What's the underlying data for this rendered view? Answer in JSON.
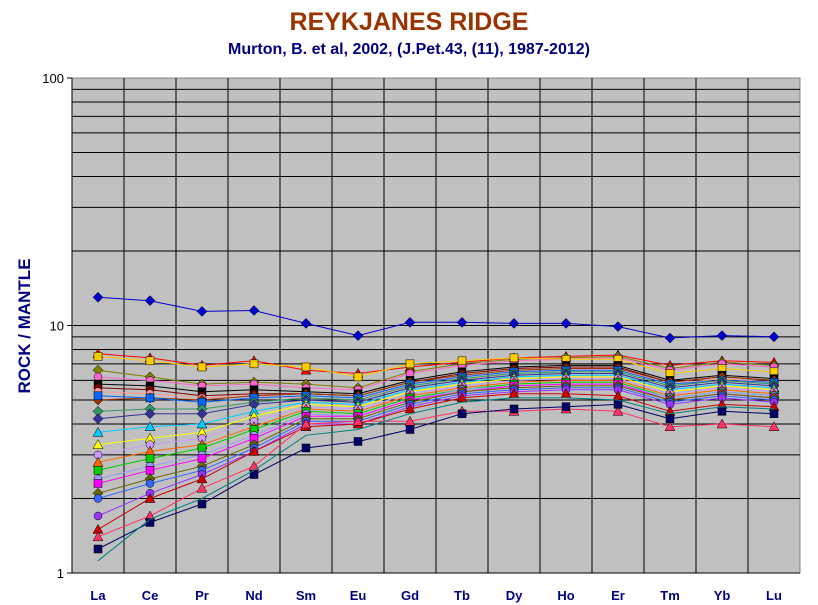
{
  "chart_data": {
    "type": "line",
    "title": "REYKJANES RIDGE",
    "subtitle": "Murton, B. et al, 2002, (J.Pet.43, (11), 1987-2012)",
    "ylabel": "ROCK / MANTLE",
    "xlabel": "",
    "yscale": "log",
    "ylim": [
      1,
      100
    ],
    "yticks": [
      "1",
      "10",
      "100"
    ],
    "grid": true,
    "legend": "none",
    "categories": [
      "La",
      "Ce",
      "Pr",
      "Nd",
      "Sm",
      "Eu",
      "Gd",
      "Tb",
      "Dy",
      "Ho",
      "Er",
      "Tm",
      "Yb",
      "Lu"
    ],
    "series": [
      {
        "color": "#0000cc",
        "marker": "diamond",
        "values": [
          13.0,
          12.6,
          11.4,
          11.5,
          10.2,
          9.1,
          10.3,
          10.3,
          10.2,
          10.2,
          9.9,
          8.9,
          9.1,
          9.0
        ]
      },
      {
        "color": "#ff0000",
        "marker": "triangle",
        "values": [
          7.7,
          7.4,
          6.9,
          7.2,
          6.6,
          6.4,
          6.8,
          7.1,
          7.4,
          7.5,
          7.6,
          6.9,
          7.2,
          7.1
        ]
      },
      {
        "color": "#808000",
        "marker": "diamond",
        "values": [
          6.6,
          6.2,
          5.8,
          5.9,
          5.8,
          5.6,
          6.5,
          7.0,
          7.3,
          7.4,
          7.5,
          6.7,
          7.1,
          6.9
        ]
      },
      {
        "color": "#ff66cc",
        "marker": "circle",
        "values": [
          6.2,
          6.0,
          5.7,
          5.8,
          5.6,
          5.5,
          6.4,
          6.9,
          7.2,
          7.3,
          7.4,
          6.6,
          7.0,
          6.8
        ]
      },
      {
        "color": "#ffcc00",
        "marker": "square",
        "values": [
          7.5,
          7.2,
          6.8,
          7.0,
          6.8,
          6.2,
          7.0,
          7.2,
          7.4,
          7.3,
          7.3,
          6.4,
          6.7,
          6.5
        ]
      },
      {
        "color": "#000000",
        "marker": "square",
        "values": [
          5.8,
          5.7,
          5.4,
          5.5,
          5.4,
          5.3,
          6.0,
          6.5,
          6.8,
          6.9,
          6.9,
          6.0,
          6.3,
          6.1
        ]
      },
      {
        "color": "#800000",
        "marker": "circle",
        "values": [
          5.6,
          5.5,
          5.2,
          5.3,
          5.3,
          5.2,
          5.9,
          6.4,
          6.7,
          6.8,
          6.8,
          5.9,
          6.2,
          6.0
        ]
      },
      {
        "color": "#ff9999",
        "marker": "circle",
        "values": [
          5.4,
          5.3,
          5.1,
          5.2,
          5.1,
          5.0,
          5.8,
          6.2,
          6.5,
          6.6,
          6.7,
          5.8,
          6.1,
          5.9
        ]
      },
      {
        "color": "#993300",
        "marker": "diamond",
        "values": [
          5.0,
          5.1,
          5.0,
          5.2,
          5.3,
          5.2,
          5.9,
          6.3,
          6.6,
          6.7,
          6.7,
          5.9,
          6.2,
          6.0
        ]
      },
      {
        "color": "#0066ff",
        "marker": "square",
        "values": [
          5.2,
          5.1,
          4.9,
          5.1,
          5.2,
          5.1,
          5.8,
          6.2,
          6.5,
          6.6,
          6.6,
          5.8,
          6.0,
          5.9
        ]
      },
      {
        "color": "#339966",
        "marker": "diamond",
        "values": [
          4.5,
          4.6,
          4.6,
          4.9,
          5.1,
          5.0,
          5.7,
          6.1,
          6.4,
          6.5,
          6.5,
          5.7,
          6.0,
          5.8
        ]
      },
      {
        "color": "#333399",
        "marker": "diamond",
        "values": [
          4.2,
          4.4,
          4.4,
          4.8,
          5.0,
          4.9,
          5.6,
          6.0,
          6.3,
          6.4,
          6.4,
          5.6,
          5.9,
          5.7
        ]
      },
      {
        "color": "#00ccff",
        "marker": "triangle",
        "values": [
          3.7,
          3.9,
          4.0,
          4.5,
          4.9,
          4.8,
          5.5,
          5.9,
          6.2,
          6.3,
          6.3,
          5.5,
          5.8,
          5.6
        ]
      },
      {
        "color": "#ffff00",
        "marker": "triangle",
        "values": [
          3.3,
          3.5,
          3.7,
          4.3,
          4.8,
          4.7,
          5.4,
          5.8,
          6.1,
          6.2,
          6.2,
          5.4,
          5.7,
          5.5
        ]
      },
      {
        "color": "#cc99ff",
        "marker": "circle",
        "values": [
          3.0,
          3.3,
          3.5,
          4.1,
          4.7,
          4.6,
          5.3,
          5.7,
          6.0,
          6.1,
          6.1,
          5.3,
          5.6,
          5.4
        ]
      },
      {
        "color": "#ff6600",
        "marker": "triangle",
        "values": [
          2.8,
          3.1,
          3.3,
          3.9,
          4.6,
          4.5,
          5.2,
          5.6,
          5.9,
          6.0,
          6.0,
          5.2,
          5.5,
          5.3
        ]
      },
      {
        "color": "#00cc00",
        "marker": "square",
        "values": [
          2.6,
          2.9,
          3.2,
          3.8,
          4.5,
          4.4,
          5.1,
          5.5,
          5.8,
          5.9,
          5.9,
          5.1,
          5.4,
          5.2
        ]
      },
      {
        "color": "#9999ff",
        "marker": "circle",
        "values": [
          2.4,
          2.7,
          3.0,
          3.6,
          4.4,
          4.3,
          5.0,
          5.5,
          5.7,
          5.8,
          5.8,
          5.1,
          5.4,
          5.2
        ]
      },
      {
        "color": "#ff00ff",
        "marker": "square",
        "values": [
          2.3,
          2.6,
          2.9,
          3.5,
          4.3,
          4.3,
          5.0,
          5.4,
          5.7,
          5.8,
          5.8,
          5.0,
          5.3,
          5.1
        ]
      },
      {
        "color": "#666600",
        "marker": "diamond",
        "values": [
          2.1,
          2.4,
          2.7,
          3.3,
          4.2,
          4.2,
          4.9,
          5.4,
          5.6,
          5.7,
          5.7,
          5.0,
          5.3,
          5.1
        ]
      },
      {
        "color": "#3366ff",
        "marker": "circle",
        "values": [
          2.0,
          2.3,
          2.6,
          3.2,
          4.1,
          4.1,
          4.8,
          5.3,
          5.5,
          5.6,
          5.6,
          4.9,
          5.2,
          5.0
        ]
      },
      {
        "color": "#9933ff",
        "marker": "circle",
        "values": [
          1.7,
          2.1,
          2.5,
          3.1,
          4.0,
          4.0,
          4.7,
          5.2,
          5.4,
          5.5,
          5.5,
          4.8,
          5.1,
          4.9
        ]
      },
      {
        "color": "#cc0000",
        "marker": "triangle",
        "values": [
          1.5,
          2.0,
          2.4,
          3.1,
          3.9,
          4.0,
          4.6,
          5.1,
          5.3,
          5.3,
          5.2,
          4.5,
          4.8,
          4.7
        ]
      },
      {
        "color": "#ff3366",
        "marker": "triangle",
        "values": [
          1.4,
          1.7,
          2.2,
          2.7,
          4.0,
          4.1,
          4.1,
          4.5,
          4.5,
          4.6,
          4.5,
          3.9,
          4.0,
          3.9
        ]
      },
      {
        "color": "#000066",
        "marker": "square",
        "values": [
          1.25,
          1.6,
          1.9,
          2.5,
          3.2,
          3.4,
          3.8,
          4.4,
          4.6,
          4.7,
          4.8,
          4.2,
          4.5,
          4.4
        ]
      },
      {
        "color": "#008080",
        "marker": "none",
        "values": [
          1.12,
          1.65,
          2.0,
          2.6,
          3.6,
          3.8,
          4.4,
          4.9,
          5.1,
          5.1,
          5.0,
          4.4,
          4.7,
          4.6
        ]
      }
    ]
  }
}
